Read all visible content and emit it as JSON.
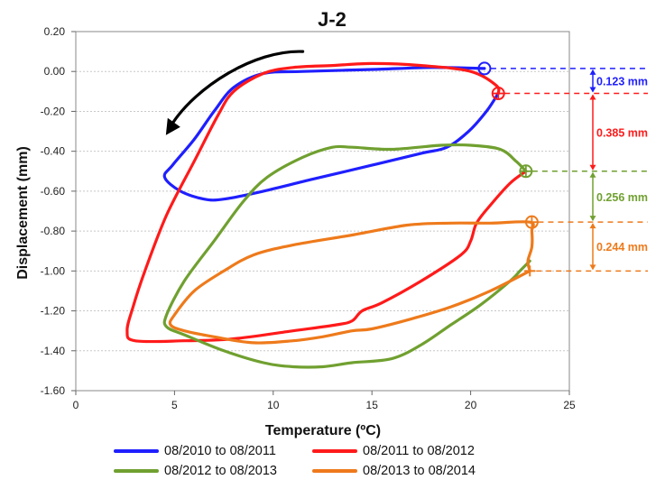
{
  "chart_data": {
    "type": "line",
    "title": "J-2",
    "xlabel": "Temperature (ºC)",
    "ylabel": "Displacement (mm)",
    "xlim": [
      0,
      25
    ],
    "ylim": [
      -1.6,
      0.2
    ],
    "xticks": [
      "0",
      "5",
      "10",
      "15",
      "20",
      "25"
    ],
    "yticks": [
      "0.20",
      "0.00",
      "-0.20",
      "-0.40",
      "-0.60",
      "-0.80",
      "-1.00",
      "-1.20",
      "-1.40",
      "-1.60"
    ],
    "grid": "horizontal",
    "legend_position": "bottom",
    "series": [
      {
        "name": "08/2010 to 08/2011",
        "color": "#1f1fff",
        "points": [
          [
            21.4,
            -0.11
          ],
          [
            20.8,
            -0.2
          ],
          [
            19.9,
            -0.3
          ],
          [
            18.8,
            -0.38
          ],
          [
            17.5,
            -0.41
          ],
          [
            15,
            -0.47
          ],
          [
            12,
            -0.54
          ],
          [
            9.5,
            -0.6
          ],
          [
            7.5,
            -0.64
          ],
          [
            6.5,
            -0.64
          ],
          [
            5.3,
            -0.6
          ],
          [
            4.5,
            -0.53
          ],
          [
            4.9,
            -0.47
          ],
          [
            6,
            -0.34
          ],
          [
            7,
            -0.2
          ],
          [
            8,
            -0.08
          ],
          [
            9.5,
            -0.01
          ],
          [
            11.5,
            0.0
          ],
          [
            15,
            0.01
          ],
          [
            18,
            0.02
          ],
          [
            20.7,
            0.015
          ]
        ],
        "marker": {
          "x": 20.7,
          "y": 0.015,
          "shape": "circle"
        }
      },
      {
        "name": "08/2011 to 08/2012",
        "color": "#ff1a1a",
        "points": [
          [
            22.8,
            -0.5
          ],
          [
            22,
            -0.56
          ],
          [
            21,
            -0.67
          ],
          [
            20.3,
            -0.76
          ],
          [
            20,
            -0.85
          ],
          [
            19.5,
            -0.92
          ],
          [
            17.5,
            -1.05
          ],
          [
            15.5,
            -1.16
          ],
          [
            14.5,
            -1.2
          ],
          [
            14,
            -1.25
          ],
          [
            13.2,
            -1.27
          ],
          [
            11,
            -1.3
          ],
          [
            8,
            -1.34
          ],
          [
            5.5,
            -1.35
          ],
          [
            3,
            -1.35
          ],
          [
            2.6,
            -1.3
          ],
          [
            2.9,
            -1.18
          ],
          [
            3.5,
            -1.0
          ],
          [
            4.6,
            -0.72
          ],
          [
            6,
            -0.45
          ],
          [
            7.2,
            -0.22
          ],
          [
            8,
            -0.1
          ],
          [
            9.5,
            -0.01
          ],
          [
            11,
            0.02
          ],
          [
            13,
            0.03
          ],
          [
            15,
            0.04
          ],
          [
            17.5,
            0.03
          ],
          [
            20,
            0.0
          ],
          [
            21.3,
            -0.07
          ],
          [
            21.4,
            -0.11
          ]
        ],
        "marker": {
          "x": 21.4,
          "y": -0.11,
          "shape": "circle-cross"
        }
      },
      {
        "name": "08/2012 to 08/2013",
        "color": "#70a030",
        "points": [
          [
            23,
            -0.95
          ],
          [
            22.5,
            -1.0
          ],
          [
            22,
            -1.05
          ],
          [
            20.5,
            -1.17
          ],
          [
            19,
            -1.27
          ],
          [
            17.5,
            -1.37
          ],
          [
            16,
            -1.44
          ],
          [
            14,
            -1.46
          ],
          [
            12.5,
            -1.48
          ],
          [
            11,
            -1.48
          ],
          [
            9.5,
            -1.46
          ],
          [
            7.5,
            -1.4
          ],
          [
            5.5,
            -1.32
          ],
          [
            4.6,
            -1.28
          ],
          [
            4.6,
            -1.22
          ],
          [
            5.5,
            -1.05
          ],
          [
            7,
            -0.85
          ],
          [
            8.5,
            -0.65
          ],
          [
            9.7,
            -0.53
          ],
          [
            11.5,
            -0.43
          ],
          [
            13,
            -0.38
          ],
          [
            14,
            -0.38
          ],
          [
            16,
            -0.39
          ],
          [
            18.5,
            -0.37
          ],
          [
            20,
            -0.37
          ],
          [
            21.5,
            -0.39
          ],
          [
            22.3,
            -0.45
          ],
          [
            22.8,
            -0.5
          ]
        ],
        "marker": {
          "x": 22.8,
          "y": -0.5,
          "shape": "circle-cross"
        }
      },
      {
        "name": "08/2013 to 08/2014",
        "color": "#ee7a1b",
        "points": [
          [
            23,
            -1.0
          ],
          [
            21,
            -1.1
          ],
          [
            19,
            -1.18
          ],
          [
            17,
            -1.24
          ],
          [
            15,
            -1.29
          ],
          [
            14,
            -1.3
          ],
          [
            12.5,
            -1.33
          ],
          [
            11,
            -1.35
          ],
          [
            9,
            -1.36
          ],
          [
            7,
            -1.33
          ],
          [
            5.5,
            -1.3
          ],
          [
            4.8,
            -1.27
          ],
          [
            5,
            -1.22
          ],
          [
            6,
            -1.1
          ],
          [
            7.5,
            -1.0
          ],
          [
            9,
            -0.92
          ],
          [
            11,
            -0.87
          ],
          [
            14,
            -0.82
          ],
          [
            16.8,
            -0.77
          ],
          [
            19,
            -0.76
          ],
          [
            21,
            -0.76
          ],
          [
            23,
            -0.755
          ],
          [
            23.1,
            -0.8
          ],
          [
            23.1,
            -0.88
          ],
          [
            22.9,
            -0.95
          ],
          [
            23,
            -1.0
          ]
        ],
        "marker": {
          "x": 23.1,
          "y": -0.755,
          "shape": "circle-cross"
        },
        "end_marker": {
          "x": 23,
          "y": -1.0,
          "shape": "cross"
        }
      }
    ],
    "annotations": [
      {
        "text": "0.123 mm",
        "color": "#1f1fff",
        "y_top": 0.015,
        "y_bottom": -0.11
      },
      {
        "text": "0.385 mm",
        "color": "#ff1a1a",
        "y_top": -0.11,
        "y_bottom": -0.5
      },
      {
        "text": "0.256 mm",
        "color": "#70a030",
        "y_top": -0.5,
        "y_bottom": -0.755
      },
      {
        "text": "0.244 mm",
        "color": "#ee7a1b",
        "y_top": -0.755,
        "y_bottom": -1.0
      }
    ],
    "direction_arrow": {
      "color": "#000000",
      "from": [
        11.5,
        0.1
      ],
      "to": [
        4.7,
        -0.31
      ]
    }
  }
}
